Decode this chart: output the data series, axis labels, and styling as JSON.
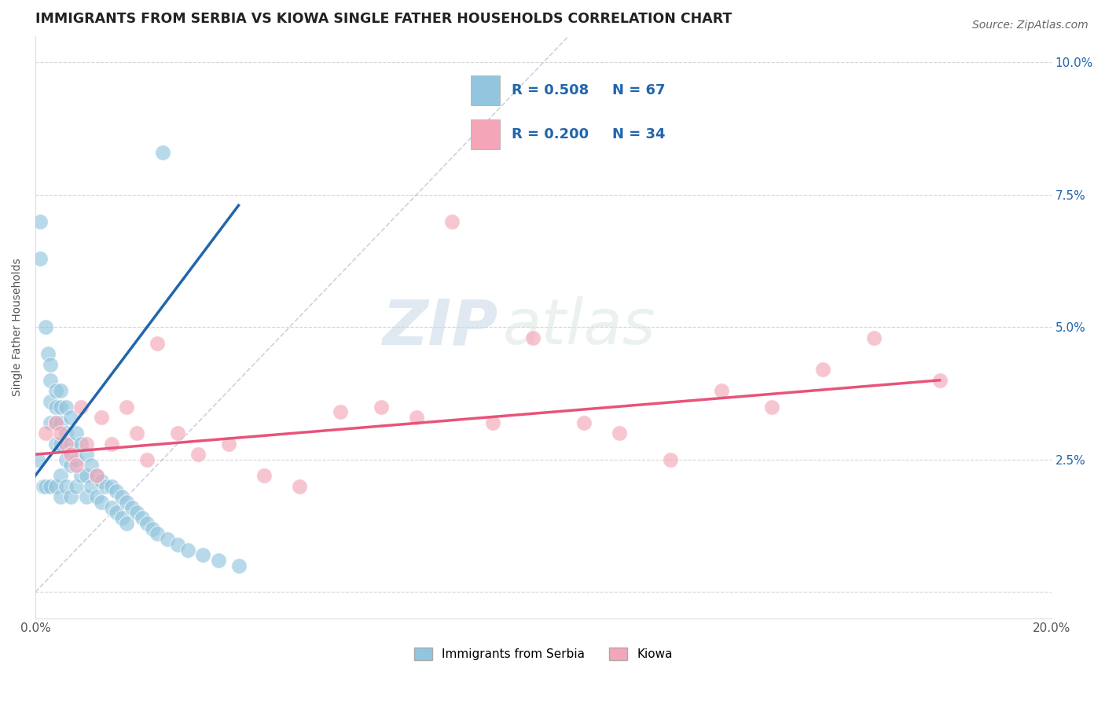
{
  "title": "IMMIGRANTS FROM SERBIA VS KIOWA SINGLE FATHER HOUSEHOLDS CORRELATION CHART",
  "source_text": "Source: ZipAtlas.com",
  "ylabel": "Single Father Households",
  "xlim": [
    0.0,
    0.2
  ],
  "ylim": [
    -0.005,
    0.105
  ],
  "xticks": [
    0.0,
    0.025,
    0.05,
    0.075,
    0.1,
    0.125,
    0.15,
    0.175,
    0.2
  ],
  "yticks": [
    0.0,
    0.025,
    0.05,
    0.075,
    0.1
  ],
  "ytick_labels_right": [
    "2.5%",
    "5.0%",
    "7.5%",
    "10.0%"
  ],
  "yticks_right": [
    0.025,
    0.05,
    0.075,
    0.1
  ],
  "blue_color": "#92c5de",
  "pink_color": "#f4a6b8",
  "blue_line_color": "#2166ac",
  "pink_line_color": "#e8537a",
  "legend_blue_label": "Immigrants from Serbia",
  "legend_pink_label": "Kiowa",
  "r_blue": "R = 0.508",
  "n_blue": "N = 67",
  "r_pink": "R = 0.200",
  "n_pink": "N = 34",
  "watermark_zip": "ZIP",
  "watermark_atlas": "atlas",
  "blue_scatter_x": [
    0.0005,
    0.001,
    0.001,
    0.0015,
    0.002,
    0.002,
    0.0025,
    0.003,
    0.003,
    0.003,
    0.003,
    0.003,
    0.004,
    0.004,
    0.004,
    0.004,
    0.004,
    0.005,
    0.005,
    0.005,
    0.005,
    0.005,
    0.005,
    0.006,
    0.006,
    0.006,
    0.006,
    0.007,
    0.007,
    0.007,
    0.007,
    0.008,
    0.008,
    0.008,
    0.009,
    0.009,
    0.01,
    0.01,
    0.01,
    0.011,
    0.011,
    0.012,
    0.012,
    0.013,
    0.013,
    0.014,
    0.015,
    0.015,
    0.016,
    0.016,
    0.017,
    0.017,
    0.018,
    0.018,
    0.019,
    0.02,
    0.021,
    0.022,
    0.023,
    0.024,
    0.025,
    0.026,
    0.028,
    0.03,
    0.033,
    0.036,
    0.04
  ],
  "blue_scatter_y": [
    0.025,
    0.07,
    0.063,
    0.02,
    0.05,
    0.02,
    0.045,
    0.043,
    0.04,
    0.036,
    0.032,
    0.02,
    0.038,
    0.035,
    0.032,
    0.028,
    0.02,
    0.038,
    0.035,
    0.032,
    0.028,
    0.022,
    0.018,
    0.035,
    0.03,
    0.025,
    0.02,
    0.033,
    0.028,
    0.024,
    0.018,
    0.03,
    0.025,
    0.02,
    0.028,
    0.022,
    0.026,
    0.022,
    0.018,
    0.024,
    0.02,
    0.022,
    0.018,
    0.021,
    0.017,
    0.02,
    0.02,
    0.016,
    0.019,
    0.015,
    0.018,
    0.014,
    0.017,
    0.013,
    0.016,
    0.015,
    0.014,
    0.013,
    0.012,
    0.011,
    0.083,
    0.01,
    0.009,
    0.008,
    0.007,
    0.006,
    0.005
  ],
  "pink_scatter_x": [
    0.002,
    0.004,
    0.005,
    0.006,
    0.007,
    0.008,
    0.009,
    0.01,
    0.012,
    0.013,
    0.015,
    0.018,
    0.02,
    0.022,
    0.024,
    0.028,
    0.032,
    0.038,
    0.045,
    0.052,
    0.06,
    0.068,
    0.075,
    0.082,
    0.09,
    0.098,
    0.108,
    0.115,
    0.125,
    0.135,
    0.145,
    0.155,
    0.165,
    0.178
  ],
  "pink_scatter_y": [
    0.03,
    0.032,
    0.03,
    0.028,
    0.026,
    0.024,
    0.035,
    0.028,
    0.022,
    0.033,
    0.028,
    0.035,
    0.03,
    0.025,
    0.047,
    0.03,
    0.026,
    0.028,
    0.022,
    0.02,
    0.034,
    0.035,
    0.033,
    0.07,
    0.032,
    0.048,
    0.032,
    0.03,
    0.025,
    0.038,
    0.035,
    0.042,
    0.048,
    0.04
  ],
  "blue_line_x": [
    0.0,
    0.04
  ],
  "blue_line_y": [
    0.022,
    0.073
  ],
  "pink_line_x": [
    0.0,
    0.178
  ],
  "pink_line_y": [
    0.026,
    0.04
  ],
  "diag_line_x": [
    0.0,
    0.105
  ],
  "diag_line_y": [
    0.0,
    0.105
  ],
  "title_fontsize": 12.5,
  "label_fontsize": 10,
  "tick_fontsize": 11,
  "watermark_fontsize_zip": 58,
  "watermark_fontsize_atlas": 58
}
